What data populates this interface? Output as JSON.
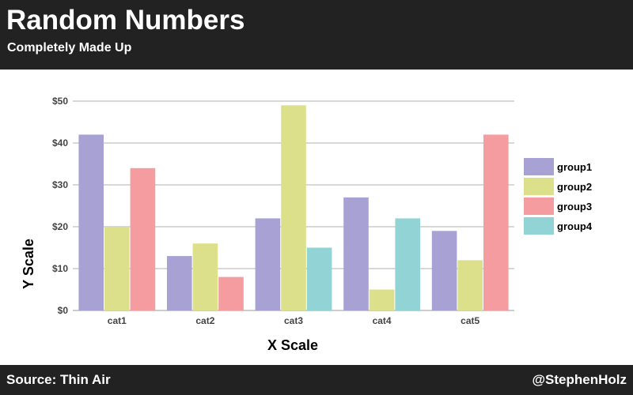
{
  "header": {
    "title": "Random Numbers",
    "subtitle": "Completely Made Up"
  },
  "footer": {
    "source": "Source: Thin Air",
    "credit": "@StephenHolz"
  },
  "chart_data": {
    "type": "bar",
    "xlabel": "X Scale",
    "ylabel": "Y Scale",
    "ylim": [
      0,
      50
    ],
    "yticks": [
      0,
      10,
      20,
      30,
      40,
      50
    ],
    "ytick_labels": [
      "$0",
      "$10",
      "$20",
      "$30",
      "$40",
      "$50"
    ],
    "grid": true,
    "legend_position": "right",
    "categories": [
      "cat1",
      "cat2",
      "cat3",
      "cat4",
      "cat5"
    ],
    "series": [
      {
        "name": "group1",
        "color": "#a8a2d4",
        "values": [
          42,
          13,
          22,
          27,
          19
        ]
      },
      {
        "name": "group2",
        "color": "#dde08a",
        "values": [
          20,
          16,
          49,
          5,
          12
        ]
      },
      {
        "name": "group3",
        "color": "#f49ca0",
        "values": [
          34,
          8,
          null,
          null,
          42
        ]
      },
      {
        "name": "group4",
        "color": "#92d3d6",
        "values": [
          null,
          null,
          15,
          22,
          null
        ]
      }
    ]
  }
}
